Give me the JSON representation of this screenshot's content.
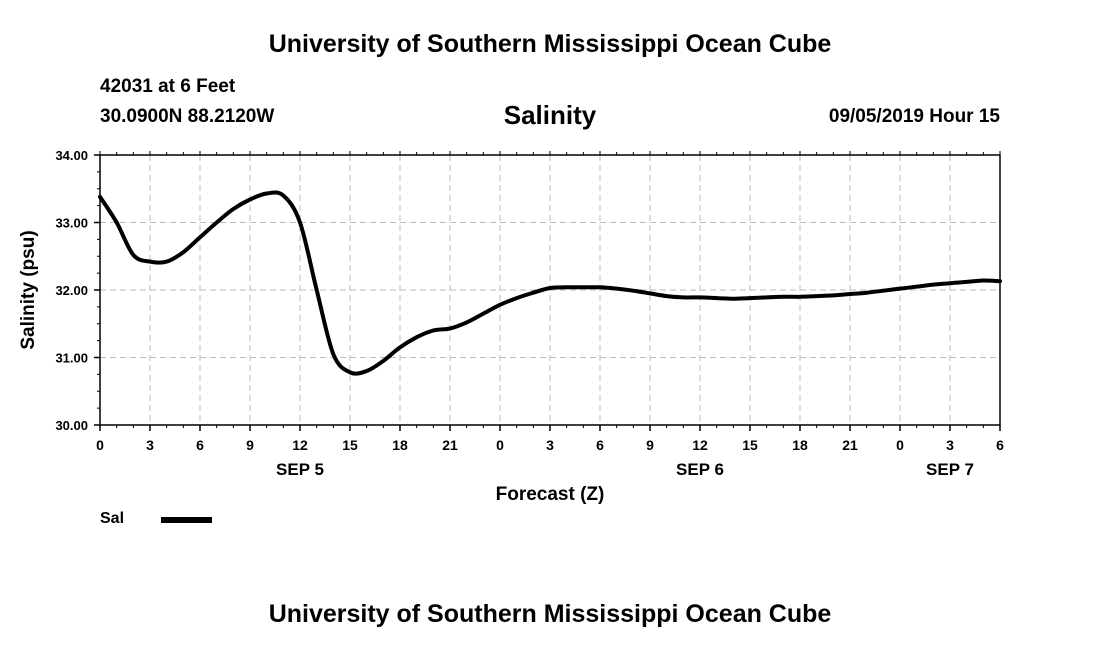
{
  "header": {
    "org_title": "University of Southern Mississippi Ocean Cube",
    "station": "42031 at 6 Feet",
    "coords": "30.0900N 88.2120W",
    "datetime": "09/05/2019 Hour 15"
  },
  "footer": {
    "org_title": "University of Southern Mississippi Ocean Cube"
  },
  "legend": {
    "label": "Sal"
  },
  "chart_data": {
    "type": "line",
    "title": "Salinity",
    "xlabel": "Forecast (Z)",
    "ylabel": "Salinity (psu)",
    "xlim": [
      0,
      54
    ],
    "ylim": [
      30.0,
      34.0
    ],
    "grid": true,
    "x_tick_values": [
      0,
      3,
      6,
      9,
      12,
      15,
      18,
      21,
      24,
      27,
      30,
      33,
      36,
      39,
      42,
      45,
      48,
      51,
      54
    ],
    "x_tick_labels": [
      "0",
      "3",
      "6",
      "9",
      "12",
      "15",
      "18",
      "21",
      "0",
      "3",
      "6",
      "9",
      "12",
      "15",
      "18",
      "21",
      "0",
      "3",
      "6"
    ],
    "y_tick_values": [
      30,
      31,
      32,
      33,
      34
    ],
    "y_tick_labels": [
      "30.00",
      "31.00",
      "32.00",
      "33.00",
      "34.00"
    ],
    "date_labels": [
      {
        "x": 12,
        "label": "SEP 5"
      },
      {
        "x": 36,
        "label": "SEP 6"
      },
      {
        "x": 51,
        "label": "SEP 7"
      }
    ],
    "series": [
      {
        "name": "Sal",
        "x": [
          0,
          1,
          2,
          3,
          4,
          5,
          6,
          7,
          8,
          9,
          10,
          11,
          12,
          13,
          14,
          15,
          16,
          17,
          18,
          19,
          20,
          21,
          22,
          23,
          24,
          25,
          26,
          27,
          28,
          29,
          30,
          31,
          32,
          33,
          34,
          35,
          36,
          37,
          38,
          39,
          40,
          41,
          42,
          43,
          44,
          45,
          46,
          47,
          48,
          49,
          50,
          51,
          52,
          53,
          54
        ],
        "values": [
          33.38,
          33.0,
          32.52,
          32.42,
          32.42,
          32.56,
          32.78,
          33.0,
          33.2,
          33.34,
          33.43,
          33.4,
          33.0,
          32.0,
          31.05,
          30.78,
          30.8,
          30.95,
          31.15,
          31.3,
          31.4,
          31.43,
          31.52,
          31.65,
          31.78,
          31.88,
          31.96,
          32.03,
          32.04,
          32.04,
          32.04,
          32.02,
          31.99,
          31.95,
          31.91,
          31.89,
          31.89,
          31.88,
          31.87,
          31.88,
          31.89,
          31.9,
          31.9,
          31.91,
          31.92,
          31.94,
          31.96,
          31.99,
          32.02,
          32.05,
          32.08,
          32.1,
          32.12,
          32.14,
          32.13
        ]
      }
    ]
  }
}
